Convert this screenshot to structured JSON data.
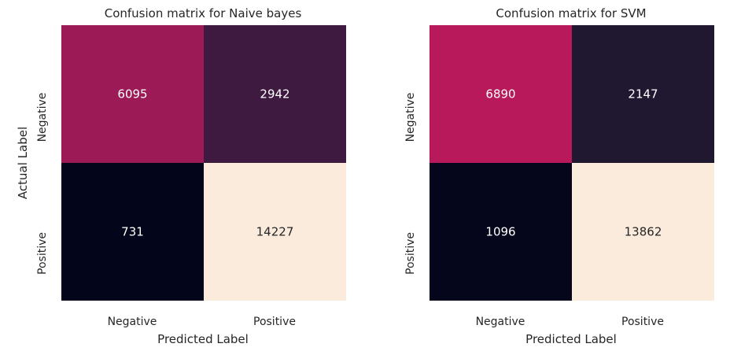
{
  "chart_data": [
    {
      "type": "heatmap",
      "title": "Confusion matrix for Naive bayes",
      "xlabel": "Predicted Label",
      "ylabel": "Actual Label",
      "x_categories": [
        "Negative",
        "Positive"
      ],
      "y_categories": [
        "Negative",
        "Positive"
      ],
      "values": [
        [
          6095,
          2942
        ],
        [
          731,
          14227
        ]
      ],
      "colorbar": false,
      "annotated": true
    },
    {
      "type": "heatmap",
      "title": "Confusion matrix for SVM",
      "xlabel": "Predicted Label",
      "ylabel": "",
      "x_categories": [
        "Negative",
        "Positive"
      ],
      "y_categories": [
        "Negative",
        "Positive"
      ],
      "values": [
        [
          6890,
          2147
        ],
        [
          1096,
          13862
        ]
      ],
      "colorbar": false,
      "annotated": true
    }
  ],
  "colors": {
    "Naive bayes": [
      [
        "#9c1b57",
        "#3e1a40"
      ],
      [
        "#03051a",
        "#faebdd"
      ]
    ],
    "SVM": [
      [
        "#b8195a",
        "#201731"
      ],
      [
        "#05061c",
        "#faebdd"
      ]
    ],
    "text_on_dark": "#ffffff",
    "text_on_light": "#262626"
  }
}
